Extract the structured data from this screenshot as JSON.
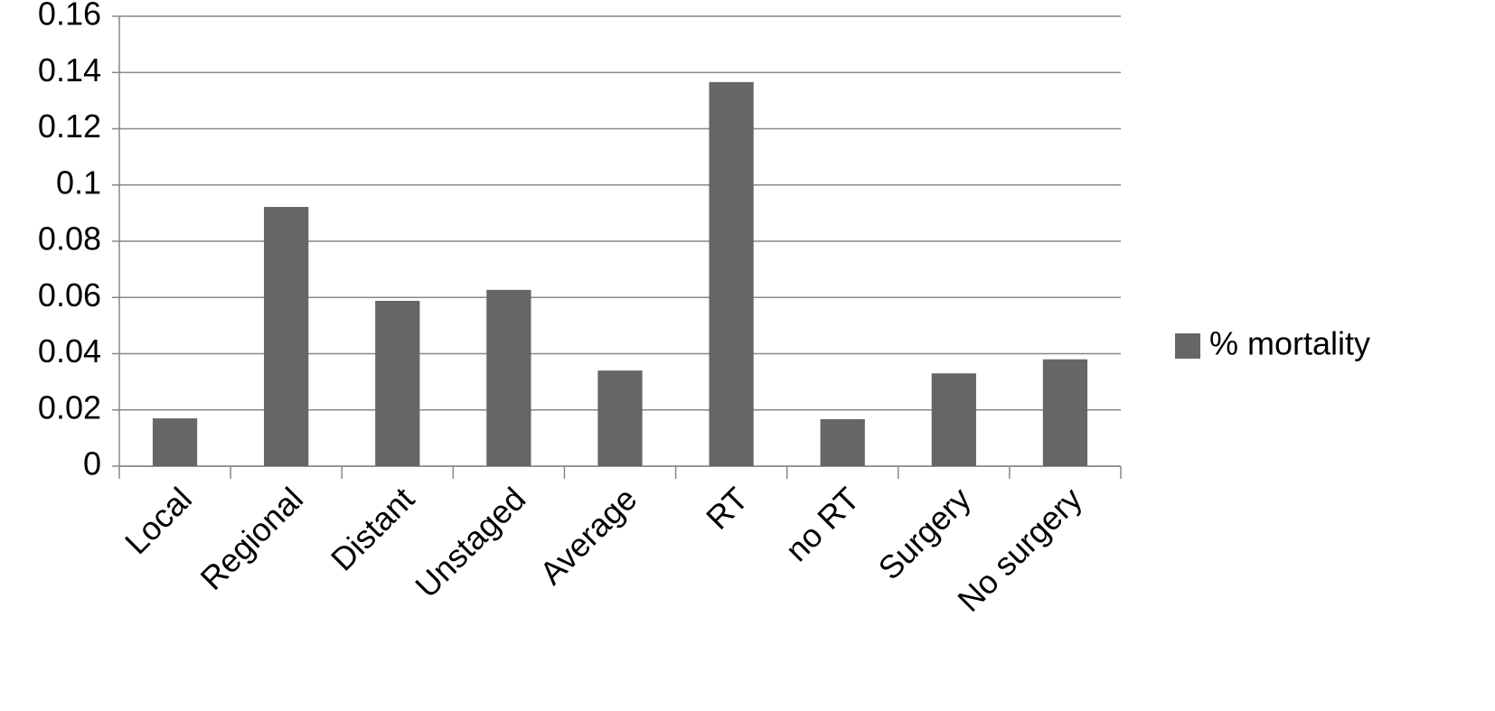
{
  "chart_data": {
    "type": "bar",
    "categories": [
      "Local",
      "Regional",
      "Distant",
      "Unstaged",
      "Average",
      "RT",
      "no RT",
      "Surgery",
      "No surgery"
    ],
    "series": [
      {
        "name": "% mortality",
        "color": "#666666",
        "values": [
          0.017,
          0.0922,
          0.0588,
          0.0627,
          0.034,
          0.1366,
          0.0167,
          0.033,
          0.038
        ]
      }
    ],
    "ylim": [
      0,
      0.16
    ],
    "yticks": [
      0,
      0.02,
      0.04,
      0.06,
      0.08,
      0.1,
      0.12,
      0.14,
      0.16
    ],
    "grid": true,
    "legend": "right"
  }
}
